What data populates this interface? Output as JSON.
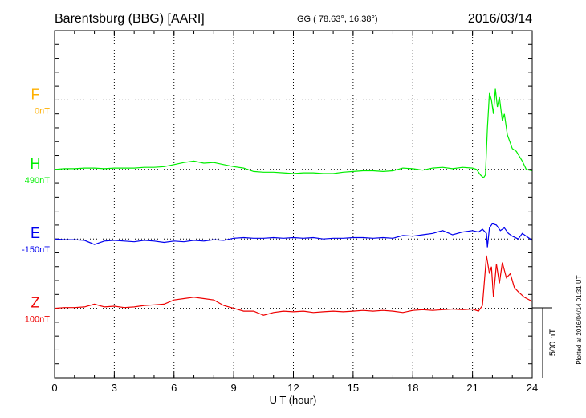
{
  "header": {
    "station": "Barentsburg (BBG)  [AARI]",
    "coords": "GG ( 78.63°,  16.38°)",
    "date": "2016/03/14"
  },
  "footer": {
    "plotted": "Plotted at 2016/04/14 01:31 UT"
  },
  "chart_data": {
    "type": "line",
    "title": "Barentsburg (BBG)  [AARI]",
    "xlabel": "U T (hour)",
    "xlim": [
      0,
      24
    ],
    "x_ticks": [
      "0",
      "3",
      "6",
      "9",
      "12",
      "15",
      "18",
      "21",
      "24"
    ],
    "x_minor_step_hours": 1,
    "ylim_nT": [
      0,
      2500
    ],
    "y_minor_step_nT": 100,
    "grid": "dotted",
    "scale_bar": {
      "label": "500 nT",
      "value_nT": 500
    },
    "channels": [
      {
        "name": "F",
        "baseline_label": "0nT",
        "offset_nT": 2000,
        "color": "#ffb000",
        "t": [],
        "values": []
      },
      {
        "name": "H",
        "baseline_label": "490nT",
        "offset_nT": 1500,
        "color": "#00ee00",
        "t": [
          0,
          0.5,
          1,
          1.5,
          2,
          2.5,
          3,
          3.5,
          4,
          4.5,
          5,
          5.5,
          6,
          6.5,
          7,
          7.5,
          8,
          8.5,
          9,
          9.5,
          10,
          10.5,
          11,
          11.5,
          12,
          12.5,
          13,
          13.5,
          14,
          14.5,
          15,
          15.5,
          16,
          16.5,
          17,
          17.5,
          18,
          18.5,
          19,
          19.5,
          20,
          20.5,
          21,
          21.2,
          21.4,
          21.55,
          21.65,
          21.75,
          21.85,
          21.95,
          22.05,
          22.15,
          22.25,
          22.35,
          22.5,
          22.6,
          22.75,
          23,
          23.2,
          23.5,
          23.7,
          24
        ],
        "values": [
          0,
          5,
          5,
          10,
          10,
          5,
          10,
          10,
          10,
          15,
          15,
          20,
          35,
          50,
          60,
          45,
          50,
          35,
          20,
          10,
          -15,
          -20,
          -20,
          -25,
          -30,
          -25,
          -25,
          -30,
          -30,
          -20,
          -15,
          -10,
          -10,
          -15,
          -10,
          10,
          5,
          -5,
          10,
          15,
          5,
          15,
          10,
          0,
          -40,
          -60,
          -40,
          300,
          550,
          500,
          400,
          580,
          450,
          520,
          350,
          400,
          250,
          150,
          130,
          60,
          0,
          -10
        ]
      },
      {
        "name": "E",
        "baseline_label": "-150nT",
        "offset_nT": 1000,
        "color": "#0000ee",
        "t": [
          0,
          0.5,
          1,
          1.5,
          2,
          2.5,
          3,
          3.5,
          4,
          4.5,
          5,
          5.5,
          6,
          6.5,
          7,
          7.5,
          8,
          8.5,
          9,
          9.5,
          10,
          10.5,
          11,
          11.5,
          12,
          12.5,
          13,
          13.5,
          14,
          14.5,
          15,
          15.5,
          16,
          16.5,
          17,
          17.5,
          18,
          18.5,
          19,
          19.5,
          20,
          20.5,
          21,
          21.3,
          21.5,
          21.7,
          21.75,
          21.85,
          22,
          22.2,
          22.4,
          22.6,
          22.8,
          23,
          23.3,
          23.5,
          23.7,
          24
        ],
        "values": [
          0,
          -5,
          -5,
          -10,
          -40,
          -15,
          -10,
          -15,
          -20,
          -10,
          -15,
          -25,
          -15,
          -20,
          -10,
          -15,
          -5,
          -10,
          5,
          10,
          5,
          5,
          10,
          5,
          10,
          5,
          10,
          0,
          5,
          5,
          10,
          10,
          5,
          10,
          5,
          25,
          20,
          30,
          40,
          60,
          30,
          50,
          60,
          50,
          70,
          40,
          -60,
          80,
          110,
          100,
          60,
          80,
          40,
          20,
          0,
          40,
          20,
          -10
        ]
      },
      {
        "name": "Z",
        "baseline_label": "100nT",
        "offset_nT": 500,
        "color": "#ee0000",
        "t": [
          0,
          0.5,
          1,
          1.5,
          2,
          2.5,
          3,
          3.5,
          4,
          4.5,
          5,
          5.5,
          6,
          6.5,
          7,
          7.5,
          8,
          8.5,
          9,
          9.5,
          10,
          10.5,
          11,
          11.5,
          12,
          12.5,
          13,
          13.5,
          14,
          14.5,
          15,
          15.5,
          16,
          16.5,
          17,
          17.5,
          18,
          18.5,
          19,
          19.5,
          20,
          20.5,
          21,
          21.3,
          21.5,
          21.7,
          21.85,
          21.95,
          22.05,
          22.2,
          22.35,
          22.5,
          22.7,
          22.9,
          23.1,
          23.3,
          23.6,
          24
        ],
        "values": [
          0,
          5,
          5,
          10,
          30,
          10,
          15,
          5,
          10,
          20,
          25,
          30,
          60,
          70,
          80,
          70,
          60,
          20,
          0,
          -20,
          -20,
          -50,
          -30,
          -20,
          -25,
          -20,
          -30,
          -25,
          -20,
          -25,
          -20,
          -15,
          -20,
          -15,
          -20,
          -30,
          -15,
          -10,
          -15,
          -10,
          -5,
          -10,
          -5,
          -20,
          20,
          380,
          250,
          300,
          80,
          320,
          180,
          330,
          220,
          250,
          150,
          120,
          80,
          50
        ]
      }
    ]
  }
}
